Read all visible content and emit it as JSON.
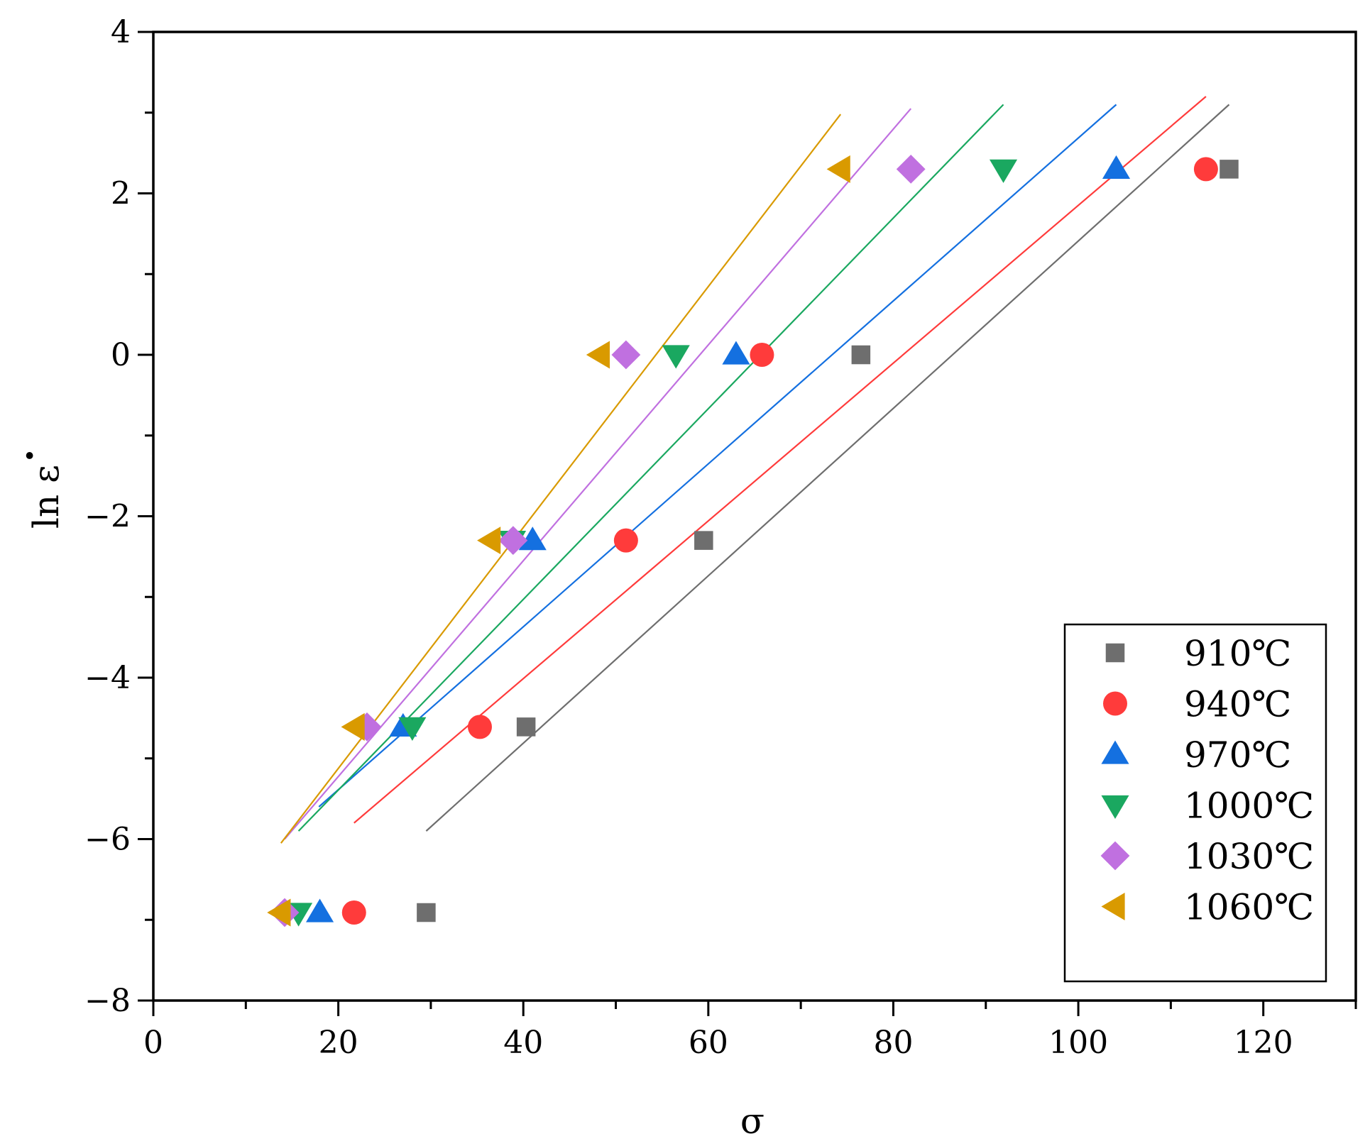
{
  "chart_data": {
    "type": "scatter",
    "title": "",
    "xlabel": "σ",
    "ylabel": "ln ε̇",
    "ylabel_main": "ln ε",
    "ylabel_dot": "•",
    "xlim": [
      0,
      130
    ],
    "ylim": [
      -8,
      4
    ],
    "x_ticks": [
      0,
      20,
      40,
      60,
      80,
      100,
      120
    ],
    "y_ticks": [
      4,
      2,
      0,
      -2,
      -4,
      -6,
      -8
    ],
    "x_tick_labels": [
      "0",
      "20",
      "40",
      "60",
      "80",
      "100",
      "120"
    ],
    "y_tick_labels": [
      "4",
      "2",
      "0",
      "−2",
      "−4",
      "−6",
      "−8"
    ],
    "grid": false,
    "legend_position": "bottom-right",
    "series": [
      {
        "name": "910℃",
        "marker": "square",
        "color": "#6e6e6e",
        "x": [
          29.5,
          40.3,
          59.5,
          76.5,
          116.3
        ],
        "y": [
          -6.91,
          -4.61,
          -2.3,
          0,
          2.3
        ],
        "fit": {
          "x": [
            29.5,
            116.3
          ],
          "y": [
            -5.9,
            3.1
          ]
        }
      },
      {
        "name": "940℃",
        "marker": "circle",
        "color": "#ff3b3b",
        "x": [
          21.7,
          35.3,
          51.1,
          65.8,
          113.8
        ],
        "y": [
          -6.91,
          -4.61,
          -2.3,
          0,
          2.3
        ],
        "fit": {
          "x": [
            21.7,
            113.8
          ],
          "y": [
            -5.8,
            3.2
          ]
        }
      },
      {
        "name": "970℃",
        "marker": "triangle-up",
        "color": "#1470e0",
        "x": [
          18.0,
          27.0,
          41.0,
          63.0,
          104.1
        ],
        "y": [
          -6.91,
          -4.61,
          -2.3,
          0,
          2.3
        ],
        "fit": {
          "x": [
            17.9,
            104.1
          ],
          "y": [
            -5.6,
            3.1
          ]
        }
      },
      {
        "name": "1000℃",
        "marker": "triangle-down",
        "color": "#1aa860",
        "x": [
          15.7,
          28.0,
          38.8,
          56.5,
          91.9
        ],
        "y": [
          -6.91,
          -4.61,
          -2.3,
          0,
          2.3
        ],
        "fit": {
          "x": [
            15.7,
            91.9
          ],
          "y": [
            -5.9,
            3.1
          ]
        }
      },
      {
        "name": "1030℃",
        "marker": "diamond",
        "color": "#c070e0",
        "x": [
          14.2,
          23.1,
          38.9,
          51.1,
          81.9
        ],
        "y": [
          -6.91,
          -4.61,
          -2.3,
          0,
          2.3
        ],
        "fit": {
          "x": [
            14.2,
            81.9
          ],
          "y": [
            -6.0,
            3.05
          ]
        }
      },
      {
        "name": "1060℃",
        "marker": "triangle-left",
        "color": "#d99a00",
        "x": [
          13.8,
          21.8,
          36.5,
          48.3,
          74.3
        ],
        "y": [
          -6.91,
          -4.61,
          -2.3,
          0,
          2.3
        ],
        "fit": {
          "x": [
            13.8,
            74.3
          ],
          "y": [
            -6.05,
            2.98
          ]
        }
      }
    ]
  }
}
